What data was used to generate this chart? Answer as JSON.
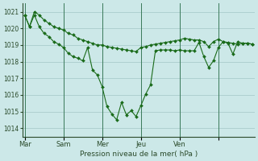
{
  "xlabel": "Pression niveau de la mer( hPa )",
  "bg_color": "#cce8e8",
  "grid_color": "#aacccc",
  "line_color": "#1a6b1a",
  "marker_color": "#1a6b1a",
  "ylim": [
    1013.5,
    1021.5
  ],
  "yticks": [
    1014,
    1015,
    1016,
    1017,
    1018,
    1019,
    1020,
    1021
  ],
  "series1_y": [
    1020.8,
    1020.1,
    1021.0,
    1020.8,
    1020.5,
    1020.3,
    1020.1,
    1020.0,
    1019.9,
    1019.7,
    1019.6,
    1019.4,
    1019.3,
    1019.2,
    1019.1,
    1019.0,
    1019.0,
    1018.9,
    1018.85,
    1018.8,
    1018.75,
    1018.7,
    1018.65,
    1018.6,
    1018.85,
    1018.9,
    1019.0,
    1019.05,
    1019.1,
    1019.15,
    1019.2,
    1019.25,
    1019.3,
    1019.4,
    1019.35,
    1019.3,
    1019.3,
    1019.2,
    1018.9,
    1019.2,
    1019.35,
    1019.2,
    1019.15,
    1019.1,
    1019.05,
    1019.1,
    1019.1,
    1019.05
  ],
  "series2_y": [
    1020.8,
    1020.1,
    1020.8,
    1020.1,
    1019.7,
    1019.5,
    1019.2,
    1019.05,
    1018.85,
    1018.5,
    1018.3,
    1018.2,
    1018.05,
    1018.85,
    1017.5,
    1017.2,
    1016.5,
    1015.3,
    1014.85,
    1014.5,
    1015.55,
    1014.8,
    1015.05,
    1014.7,
    1015.35,
    1016.05,
    1016.6,
    1018.65,
    1018.7,
    1018.7,
    1018.7,
    1018.65,
    1018.7,
    1018.65,
    1018.65,
    1018.65,
    1019.15,
    1018.3,
    1017.65,
    1018.05,
    1018.85,
    1019.2,
    1019.1,
    1018.45,
    1019.2,
    1019.1,
    1019.1,
    1019.05
  ],
  "xtick_positions": [
    0,
    8,
    16,
    24,
    32,
    40
  ],
  "xtick_labels": [
    "Mar",
    "Sam",
    "Mer",
    "Jeu",
    "Ven",
    ""
  ],
  "vline_positions": [
    0,
    8,
    16,
    24,
    32,
    40
  ]
}
